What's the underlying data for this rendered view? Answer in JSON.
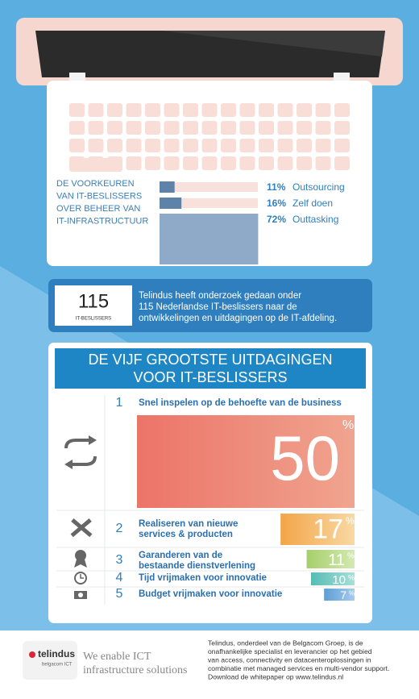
{
  "preferences": {
    "title_lines": [
      "DE VOORKEUREN",
      "VAN IT-BESLISSERS",
      "OVER BEHEER VAN",
      "IT-INFRASTRUCTUUR"
    ],
    "items": [
      {
        "value": 11,
        "unit": "%",
        "name": "Outsourcing"
      },
      {
        "value": 16,
        "unit": "%",
        "name": "Zelf doen"
      },
      {
        "value": 72,
        "unit": "%",
        "name": "Outtasking"
      }
    ]
  },
  "research": {
    "count": 115,
    "count_label": "IT-BESLISSERS",
    "text_lines": [
      "Telindus heeft onderzoek gedaan onder",
      "115 Nederlandse IT-beslissers naar de",
      "ontwikkelingen en uitdagingen op de IT-afdeling."
    ]
  },
  "challenges": {
    "title_lines": [
      "DE VIJF  GROOTSTE UITDAGINGEN",
      "VOOR IT-BESLISSERS"
    ],
    "items": [
      {
        "rank": 1,
        "text_lines": [
          "Snel inspelen op de behoefte van de business"
        ],
        "value": 50,
        "unit": "%",
        "color": "#ec7468",
        "color2": "#f0a48f"
      },
      {
        "rank": 2,
        "text_lines": [
          "Realiseren van nieuwe",
          "services & producten"
        ],
        "value": 17,
        "unit": "%",
        "color": "#f3a548",
        "color2": "#f8d9a3"
      },
      {
        "rank": 3,
        "text_lines": [
          "Garanderen van de",
          "bestaande dienstverlening"
        ],
        "value": 11,
        "unit": "%",
        "color": "#a6cf6a",
        "color2": "#d3e9b2"
      },
      {
        "rank": 4,
        "text_lines": [
          "Tijd vrijmaken voor innovatie"
        ],
        "value": 10,
        "unit": "%",
        "color": "#55bcb3",
        "color2": "#a9dfd9"
      },
      {
        "rank": 5,
        "text_lines": [
          "Budget  vrijmaken voor innovatie"
        ],
        "value": 7,
        "unit": "%",
        "color": "#5c9ed6",
        "color2": "#a7cbec"
      }
    ]
  },
  "footer": {
    "logo": "telindus",
    "logo_sub": "belgacom ICT",
    "tagline_lines": [
      "We enable ICT",
      "infrastructure solutions"
    ],
    "text_lines": [
      "Telindus, onderdeel van de Belgacom Groep, is de",
      "onafhankelijke specialist en leverancier op het gebied",
      "van access, connectivity en datacenteroplossingen in",
      "combinatie met managed services en multi-vendor support.",
      "Download de whitepaper op www.telindus.nl"
    ]
  }
}
